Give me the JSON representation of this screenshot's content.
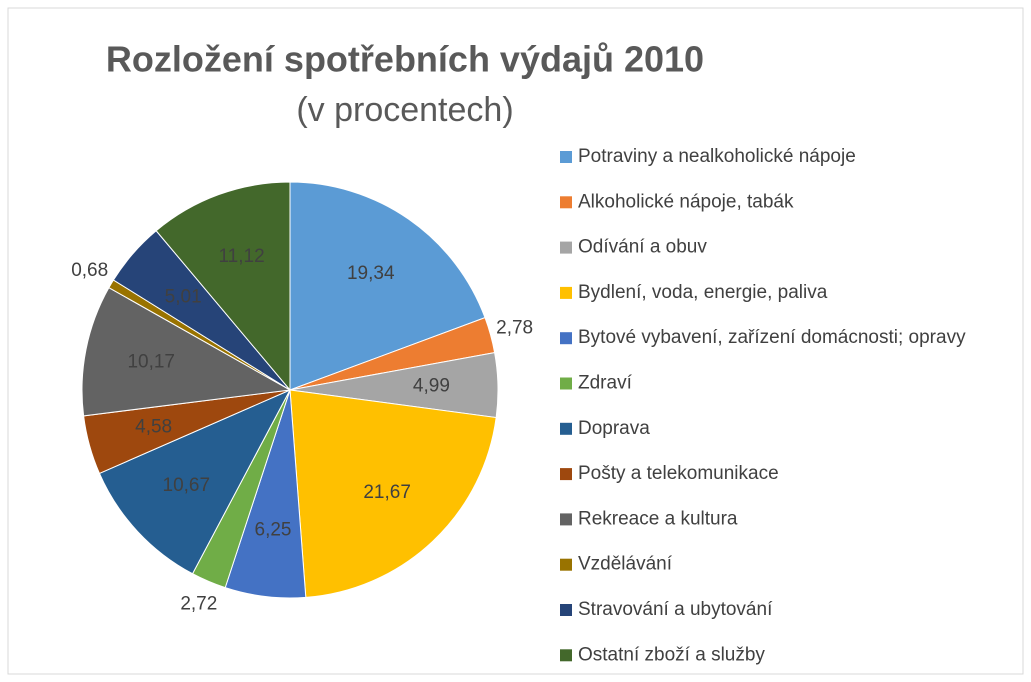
{
  "chart_data": {
    "type": "pie",
    "title": "Rozložení spotřebních výdajů 2010",
    "subtitle": "(v procentech)",
    "categories": [
      "Potraviny a nealkoholické nápoje",
      "Alkoholické nápoje, tabák",
      "Odívání a obuv",
      "Bydlení, voda, energie, paliva",
      "Bytové vybavení, zařízení domácnosti; opravy",
      "Zdraví",
      "Doprava",
      "Pošty a telekomunikace",
      "Rekreace a kultura",
      "Vzdělávání",
      "Stravování a ubytování",
      "Ostatní zboží a služby"
    ],
    "values": [
      19.34,
      2.78,
      4.99,
      21.67,
      6.25,
      2.72,
      10.67,
      4.58,
      10.17,
      0.68,
      5.01,
      11.12
    ],
    "value_labels": [
      "19,34",
      "2,78",
      "4,99",
      "21,67",
      "6,25",
      "2,72",
      "10,67",
      "4,58",
      "10,17",
      "0,68",
      "5,01",
      "11,12"
    ],
    "colors": [
      "#5b9bd5",
      "#ed7d31",
      "#a5a5a5",
      "#ffc000",
      "#4472c4",
      "#70ad47",
      "#255e91",
      "#9e480e",
      "#636363",
      "#997300",
      "#264478",
      "#43682b"
    ],
    "legend": "right"
  }
}
